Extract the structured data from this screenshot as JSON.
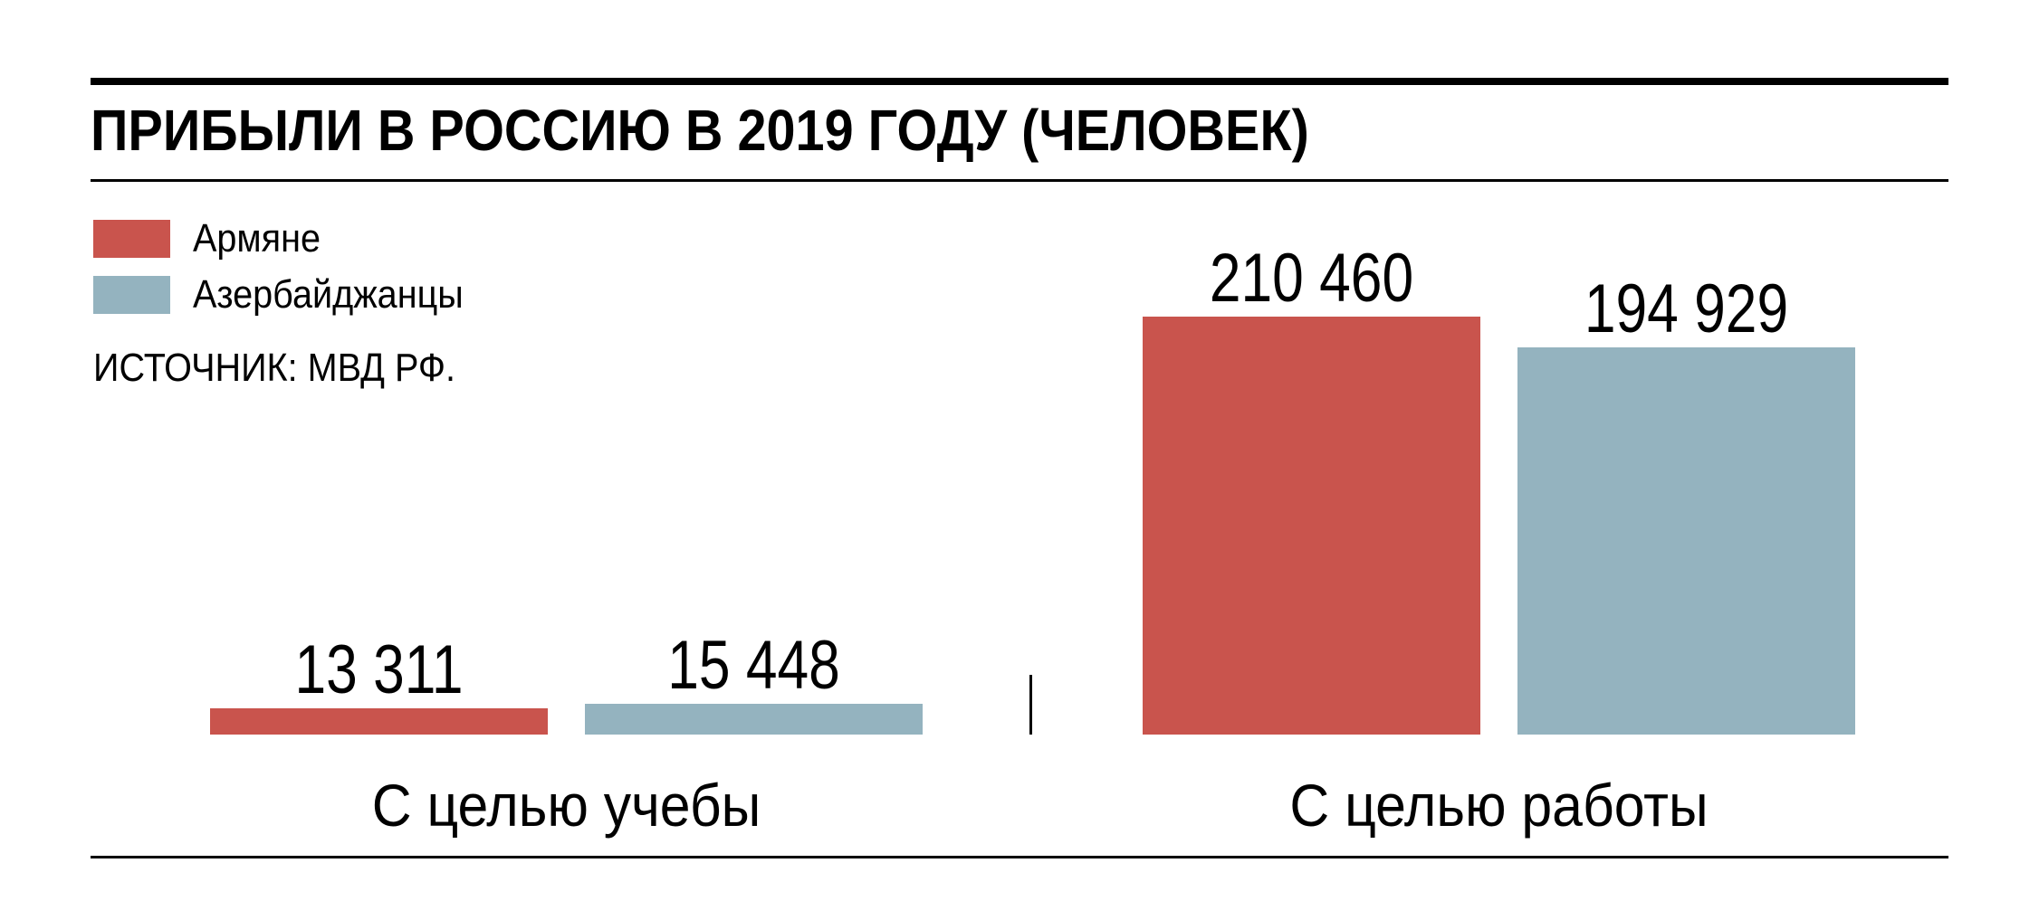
{
  "title": "ПРИБЫЛИ В РОССИЮ В 2019 ГОДУ (ЧЕЛОВЕК)",
  "source": "ИСТОЧНИК: МВД РФ.",
  "legend": [
    {
      "label": "Армяне",
      "color": "#c9544d"
    },
    {
      "label": "Азербайджанцы",
      "color": "#94b3bf"
    }
  ],
  "chart_data": {
    "type": "bar",
    "title": "ПРИБЫЛИ В РОССИЮ В 2019 ГОДУ (ЧЕЛОВЕК)",
    "source": "ИСТОЧНИК: МВД РФ.",
    "categories": [
      "С целью учебы",
      "С целью работы"
    ],
    "series": [
      {
        "name": "Армяне",
        "color": "#c9544d",
        "values": [
          13311,
          210460
        ],
        "value_labels": [
          "13 311",
          "210 460"
        ]
      },
      {
        "name": "Азербайджанцы",
        "color": "#94b3bf",
        "values": [
          15448,
          194929
        ],
        "value_labels": [
          "15 448",
          "194 929"
        ]
      }
    ],
    "value_axis": {
      "min": 0,
      "max": 210460,
      "visible": false
    },
    "grid": false,
    "legend_position": "top-left",
    "bar_value_labels_position": "above-bar"
  }
}
